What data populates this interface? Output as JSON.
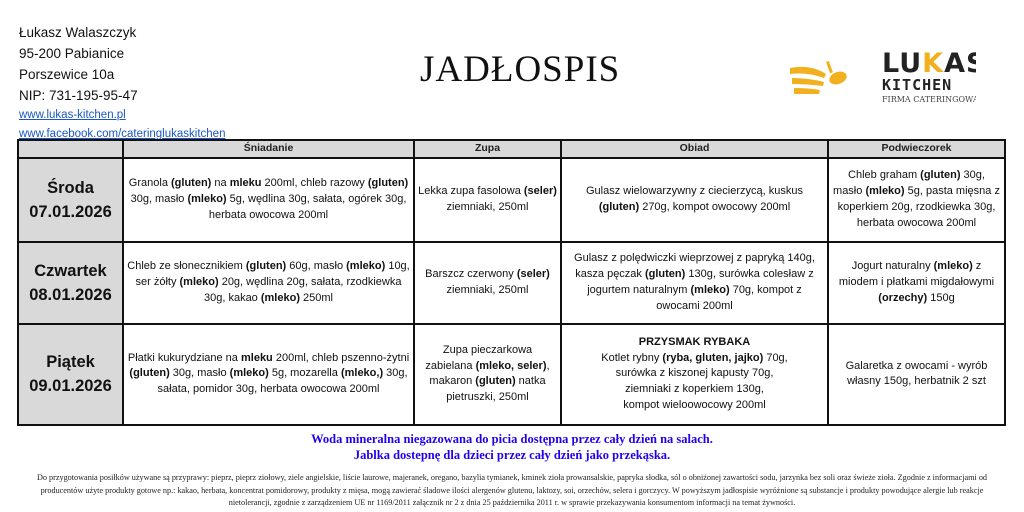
{
  "header": {
    "company_name": "Łukasz Walaszczyk",
    "city": "95-200 Pabianice",
    "street": "Porszewice 10a",
    "nip": "NIP: 731-195-95-47",
    "website": "www.lukas-kitchen.pl",
    "facebook": "www.facebook.com/cateringlukaskitchen",
    "title": "JADŁOSPIS",
    "logo": {
      "line1": "LUKAS",
      "line2": "KITCHEN",
      "line3": "FIRMA CATERINGOWA",
      "color": "#f2b01e"
    }
  },
  "table": {
    "columns": [
      "",
      "Śniadanie",
      "Zupa",
      "Obiad",
      "Podwieczorek"
    ],
    "rows": [
      {
        "day": "Środa",
        "date": "07.01.2026",
        "cells": [
          [
            {
              "t": "Granola "
            },
            {
              "t": "(gluten)",
              "b": true
            },
            {
              "t": " na "
            },
            {
              "t": "mleku",
              "b": true
            },
            {
              "t": " 200ml, chleb razowy "
            },
            {
              "t": "(gluten)",
              "b": true
            },
            {
              "t": " 30g, masło "
            },
            {
              "t": "(mleko)",
              "b": true
            },
            {
              "t": " 5g, wędlina 30g, sałata, ogórek 30g, herbata owocowa 200ml"
            }
          ],
          [
            {
              "t": "Lekka zupa fasolowa "
            },
            {
              "t": "(seler)",
              "b": true
            },
            {
              "t": " ziemniaki, 250ml"
            }
          ],
          [
            {
              "t": "Gulasz wielowarzywny z ciecierzycą, kuskus "
            },
            {
              "t": "(gluten)",
              "b": true
            },
            {
              "t": " 270g, kompot owocowy 200ml"
            }
          ],
          [
            {
              "t": "Chleb graham "
            },
            {
              "t": "(gluten)",
              "b": true
            },
            {
              "t": " 30g, masło "
            },
            {
              "t": "(mleko)",
              "b": true
            },
            {
              "t": " 5g, pasta mięsna z koperkiem 20g, rzodkiewka 30g, herbata owocowa 200ml"
            }
          ]
        ]
      },
      {
        "day": "Czwartek",
        "date": "08.01.2026",
        "cells": [
          [
            {
              "t": "Chleb ze słonecznikiem "
            },
            {
              "t": "(gluten)",
              "b": true
            },
            {
              "t": "  60g, masło "
            },
            {
              "t": "(mleko)",
              "b": true
            },
            {
              "t": " 10g, ser żółty "
            },
            {
              "t": "(mleko)",
              "b": true
            },
            {
              "t": " 20g, wędlina 20g, sałata, rzodkiewka 30g, kakao "
            },
            {
              "t": "(mleko)",
              "b": true
            },
            {
              "t": " 250ml"
            }
          ],
          [
            {
              "t": "Barszcz czerwony "
            },
            {
              "t": "(seler)",
              "b": true
            },
            {
              "t": " ziemniaki, 250ml"
            }
          ],
          [
            {
              "t": "Gulasz z polędwiczki wieprzowej z papryką 140g, kasza pęczak "
            },
            {
              "t": "(gluten)",
              "b": true
            },
            {
              "t": " 130g, surówka colesław z jogurtem naturalnym "
            },
            {
              "t": "(mleko)",
              "b": true
            },
            {
              "t": " 70g, kompot z owocami 200ml"
            }
          ],
          [
            {
              "t": "Jogurt naturalny "
            },
            {
              "t": "(mleko)",
              "b": true
            },
            {
              "t": " z miodem i płatkami migdałowymi "
            },
            {
              "t": "(orzechy)",
              "b": true
            },
            {
              "t": " 150g"
            }
          ]
        ]
      },
      {
        "day": "Piątek",
        "date": "09.01.2026",
        "cells": [
          [
            {
              "t": "Płatki kukurydziane na "
            },
            {
              "t": "mleku",
              "b": true
            },
            {
              "t": " 200ml, chleb pszenno-żytni "
            },
            {
              "t": "(gluten)",
              "b": true
            },
            {
              "t": " 30g, masło "
            },
            {
              "t": "(mleko)",
              "b": true
            },
            {
              "t": " 5g, mozarella "
            },
            {
              "t": "(mleko,)",
              "b": true
            },
            {
              "t": "  30g, sałata, pomidor 30g, herbata owocowa 200ml"
            }
          ],
          [
            {
              "t": "Zupa pieczarkowa zabielana "
            },
            {
              "t": "(mleko, seler)",
              "b": true
            },
            {
              "t": ", makaron "
            },
            {
              "t": "(gluten)",
              "b": true
            },
            {
              "t": " natka pietruszki, 250ml"
            }
          ],
          [
            {
              "t": "PRZYSMAK RYBAKA",
              "b": true,
              "br": true
            },
            {
              "t": "Kotlet rybny "
            },
            {
              "t": "(ryba, gluten, jajko)",
              "b": true
            },
            {
              "t": " 70g,",
              "br": true
            },
            {
              "t": "surówka z kiszonej kapusty 70g,",
              "br": true
            },
            {
              "t": "ziemniaki z koperkiem 130g,",
              "br": true
            },
            {
              "t": "kompot wieloowocowy 200ml"
            }
          ],
          [
            {
              "t": "Galaretka z owocami - wyrób własny 150g, herbatnik 2 szt"
            }
          ]
        ]
      }
    ]
  },
  "notices": [
    "Woda mineralna niegazowana do picia dostępna przez cały dzień na salach.",
    "Jablka dostepnę dla dzieci przez cały dzień jako przekąska."
  ],
  "notice_color": "#2200ee",
  "footer": "Do przygotowania posiłków używane są przyprawy: pieprz, pieprz ziołowy, ziele angielskie, liście laurowe, majeranek, oregano, bazylia tymianek, kminek zioła prowansalskie, papryka słodka, sól o obniżonej zawartości sodu, jarzynka bez soli oraz świeże zioła. Zgodnie z informacjami od producentów użyte produkty gotowe np.: kakao, herbata, koncentrat pomidorowy, produkty z mięsa, mogą zawierać śladowe ilości alergenów glutenu, laktozy, soi, orzechów,   selera i gorczycy. W powyższym jadłospisie wyróżnione są substancje i produkty powodujące alergie lub reakcje nietolerancji, zgodnie z zarządzeniem UE nr 1169/2011 załącznik nr 2 z dnia 25 października 2011 r. w sprawie przekazywania konsumentom informacji na temat żywności."
}
